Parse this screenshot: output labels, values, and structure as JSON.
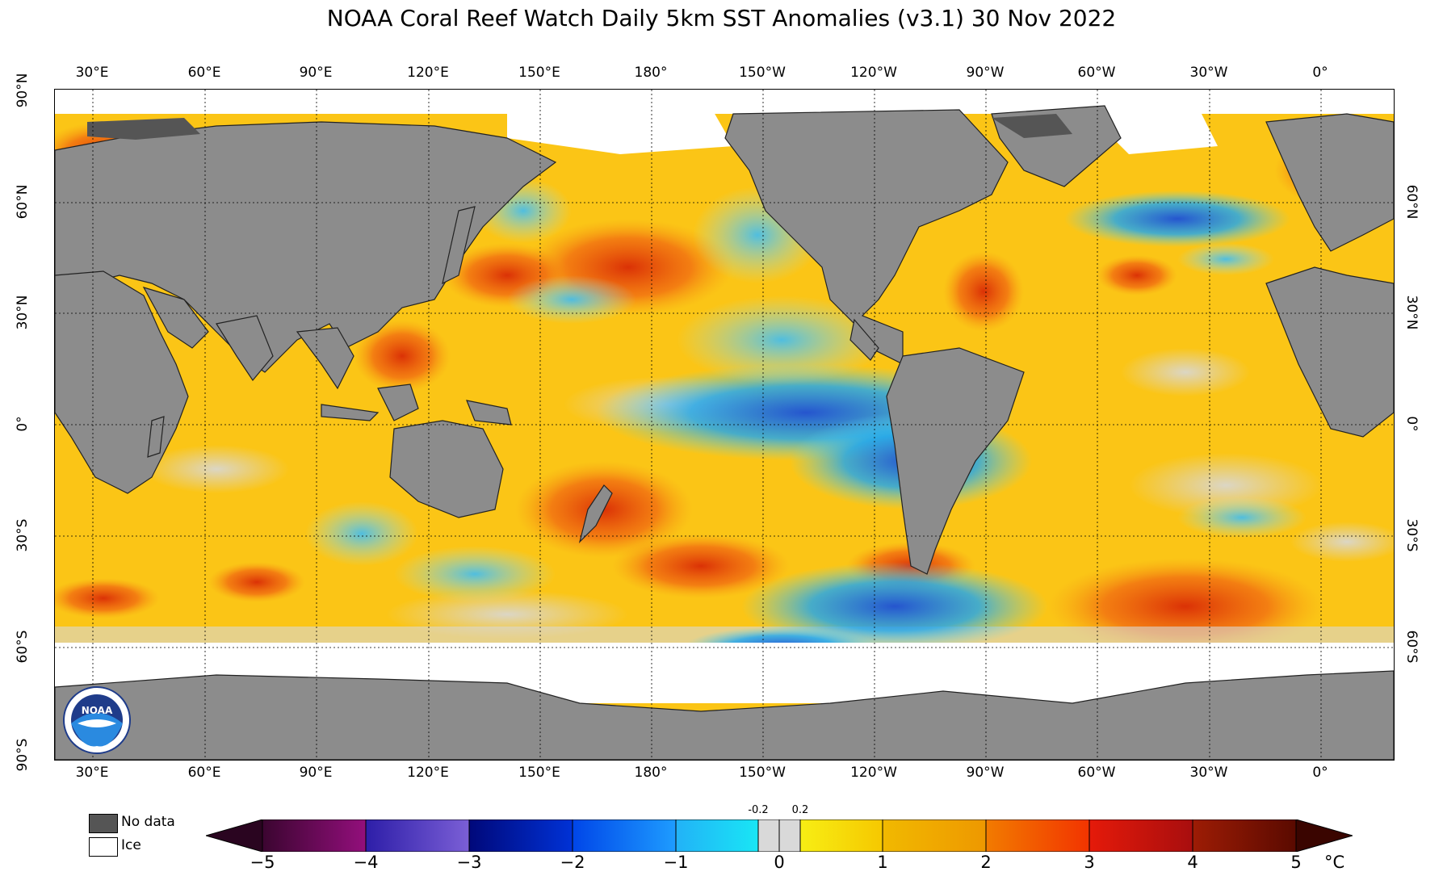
{
  "title": "NOAA Coral Reef Watch Daily 5km SST Anomalies  (v3.1)   30 Nov 2022",
  "longitude_labels": [
    "30°E",
    "60°E",
    "90°E",
    "120°E",
    "150°E",
    "180°",
    "150°W",
    "120°W",
    "90°W",
    "60°W",
    "30°W",
    "0°"
  ],
  "latitude_labels_left": [
    "90°N",
    "60°N",
    "30°N",
    "0°",
    "30°S",
    "60°S",
    "90°S"
  ],
  "latitude_labels_right": [
    "60°N",
    "30°N",
    "0°",
    "30°S",
    "60°S"
  ],
  "legend": {
    "no_data_label": "No data",
    "ice_label": "Ice"
  },
  "colorbar": {
    "ticks": [
      "−5",
      "−4",
      "−3",
      "−2",
      "−1",
      "0",
      "1",
      "2",
      "3",
      "4",
      "5"
    ],
    "small_ticks": [
      "-0.2",
      "0.2"
    ],
    "unit": "°C",
    "min": -5,
    "max": 5
  },
  "colors": {
    "land": "#8c8c8c",
    "no_data": "#555555",
    "ice": "#ffffff",
    "neutral": "#d9d9d9"
  },
  "logo": {
    "name": "noaa-logo",
    "text": "NOAA"
  }
}
